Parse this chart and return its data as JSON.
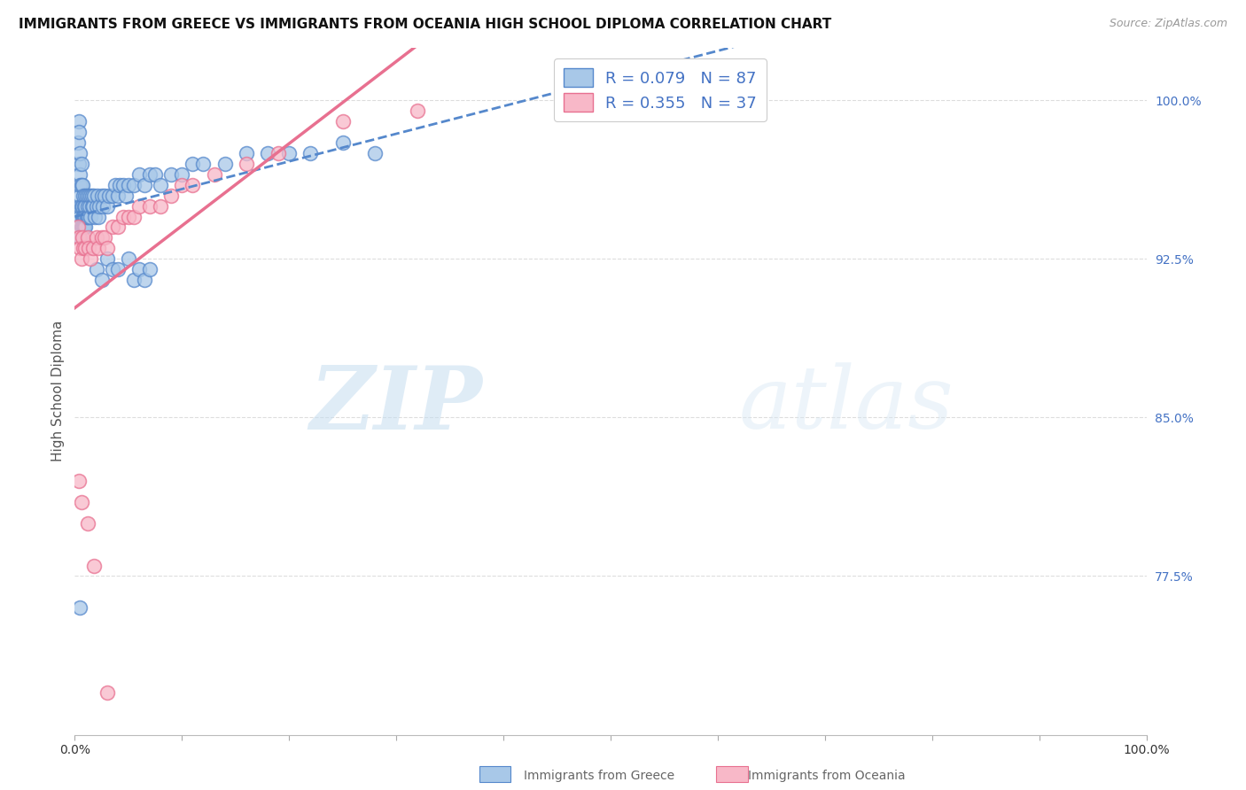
{
  "title": "IMMIGRANTS FROM GREECE VS IMMIGRANTS FROM OCEANIA HIGH SCHOOL DIPLOMA CORRELATION CHART",
  "source": "Source: ZipAtlas.com",
  "ylabel_label": "High School Diploma",
  "ytick_labels": [
    "100.0%",
    "92.5%",
    "85.0%",
    "77.5%"
  ],
  "ytick_values": [
    1.0,
    0.925,
    0.85,
    0.775
  ],
  "ylim": [
    0.7,
    1.025
  ],
  "xlim": [
    0.0,
    1.0
  ],
  "xtick_positions": [
    0.0,
    0.1,
    0.2,
    0.3,
    0.4,
    0.5,
    0.6,
    0.7,
    0.8,
    0.9,
    1.0
  ],
  "greece_color_face": "#a8c8e8",
  "greece_color_edge": "#5588cc",
  "oceania_color_face": "#f8b8c8",
  "oceania_color_edge": "#e87090",
  "greece_line_color": "#5588cc",
  "oceania_line_color": "#e87090",
  "right_tick_color": "#4472c4",
  "grid_color": "#dddddd",
  "background_color": "#ffffff",
  "title_fontsize": 11,
  "source_fontsize": 9,
  "legend_fontsize": 13,
  "axis_label_fontsize": 11,
  "watermark_text": "ZIPatlas",
  "legend_label_greece": "R = 0.079   N = 87",
  "legend_label_oceania": "R = 0.355   N = 37",
  "bottom_legend_greece": "Immigrants from Greece",
  "bottom_legend_oceania": "Immigrants from Oceania",
  "greece_scatter_x": [
    0.003,
    0.004,
    0.004,
    0.004,
    0.005,
    0.005,
    0.005,
    0.005,
    0.005,
    0.005,
    0.005,
    0.006,
    0.006,
    0.006,
    0.006,
    0.007,
    0.007,
    0.007,
    0.007,
    0.008,
    0.008,
    0.008,
    0.009,
    0.009,
    0.009,
    0.01,
    0.01,
    0.01,
    0.01,
    0.011,
    0.011,
    0.012,
    0.012,
    0.013,
    0.013,
    0.014,
    0.015,
    0.015,
    0.016,
    0.016,
    0.017,
    0.018,
    0.019,
    0.02,
    0.021,
    0.022,
    0.023,
    0.025,
    0.026,
    0.028,
    0.03,
    0.032,
    0.035,
    0.038,
    0.04,
    0.042,
    0.045,
    0.048,
    0.05,
    0.055,
    0.06,
    0.065,
    0.07,
    0.075,
    0.08,
    0.09,
    0.1,
    0.11,
    0.12,
    0.14,
    0.16,
    0.18,
    0.2,
    0.22,
    0.25,
    0.28,
    0.02,
    0.025,
    0.03,
    0.035,
    0.04,
    0.05,
    0.055,
    0.06,
    0.065,
    0.07,
    0.005
  ],
  "greece_scatter_y": [
    0.98,
    0.97,
    0.99,
    0.985,
    0.975,
    0.965,
    0.955,
    0.945,
    0.935,
    0.96,
    0.95,
    0.97,
    0.96,
    0.95,
    0.94,
    0.96,
    0.95,
    0.945,
    0.94,
    0.955,
    0.945,
    0.94,
    0.95,
    0.945,
    0.94,
    0.955,
    0.95,
    0.945,
    0.94,
    0.955,
    0.945,
    0.95,
    0.945,
    0.955,
    0.945,
    0.95,
    0.955,
    0.945,
    0.955,
    0.95,
    0.95,
    0.955,
    0.945,
    0.95,
    0.955,
    0.945,
    0.95,
    0.955,
    0.95,
    0.955,
    0.95,
    0.955,
    0.955,
    0.96,
    0.955,
    0.96,
    0.96,
    0.955,
    0.96,
    0.96,
    0.965,
    0.96,
    0.965,
    0.965,
    0.96,
    0.965,
    0.965,
    0.97,
    0.97,
    0.97,
    0.975,
    0.975,
    0.975,
    0.975,
    0.98,
    0.975,
    0.92,
    0.915,
    0.925,
    0.92,
    0.92,
    0.925,
    0.915,
    0.92,
    0.915,
    0.92,
    0.76
  ],
  "oceania_scatter_x": [
    0.003,
    0.004,
    0.005,
    0.006,
    0.007,
    0.008,
    0.01,
    0.012,
    0.013,
    0.015,
    0.017,
    0.02,
    0.022,
    0.025,
    0.028,
    0.03,
    0.035,
    0.04,
    0.045,
    0.05,
    0.055,
    0.06,
    0.07,
    0.08,
    0.09,
    0.1,
    0.11,
    0.13,
    0.16,
    0.19,
    0.25,
    0.32,
    0.004,
    0.006,
    0.012,
    0.018,
    0.03
  ],
  "oceania_scatter_y": [
    0.94,
    0.935,
    0.93,
    0.925,
    0.935,
    0.93,
    0.93,
    0.935,
    0.93,
    0.925,
    0.93,
    0.935,
    0.93,
    0.935,
    0.935,
    0.93,
    0.94,
    0.94,
    0.945,
    0.945,
    0.945,
    0.95,
    0.95,
    0.95,
    0.955,
    0.96,
    0.96,
    0.965,
    0.97,
    0.975,
    0.99,
    0.995,
    0.82,
    0.81,
    0.8,
    0.78,
    0.72
  ]
}
